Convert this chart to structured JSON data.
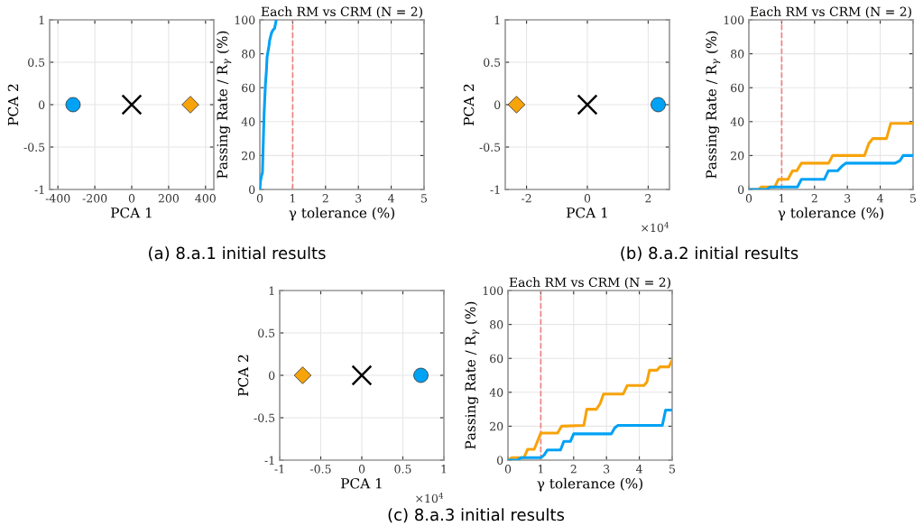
{
  "chart_data": [
    {
      "type": "scatter",
      "xlabel": "PCA 1",
      "ylabel": "PCA 2",
      "xlim": [
        -445,
        445
      ],
      "ylim": [
        -1,
        1
      ],
      "xticks": [
        -400,
        -200,
        0,
        200,
        400
      ],
      "yticks": [
        -1,
        -0.5,
        0,
        0.5,
        1
      ],
      "grid": true,
      "series": [
        {
          "color": "#00a2f5",
          "marker": "circle",
          "x": [
            -318
          ],
          "values": [
            0
          ]
        },
        {
          "color": "#000000",
          "marker": "cross",
          "x": [
            0
          ],
          "values": [
            0
          ]
        },
        {
          "color": "#f7a30a",
          "marker": "diamond",
          "x": [
            318
          ],
          "values": [
            0
          ]
        }
      ]
    },
    {
      "type": "line",
      "title": "Each RM vs CRM (N = 2)",
      "xlabel": "γ tolerance (%)",
      "ylabel": "Passing Rate / R$_{γ}$ (%)",
      "xlim": [
        0,
        5
      ],
      "ylim": [
        0,
        100
      ],
      "xticks": [
        0,
        1,
        2,
        3,
        4,
        5
      ],
      "yticks": [
        0,
        20,
        40,
        60,
        80,
        100
      ],
      "grid": true,
      "ref_lines": [
        {
          "axis": "x",
          "value": 1,
          "color": "#f08080",
          "line_style": "dashed"
        }
      ],
      "annotations": [
        "(a) 8.a.1 initial results"
      ],
      "series": [
        {
          "color": "#00a2f5",
          "x": [
            0,
            0.02,
            0.05,
            0.08,
            0.1,
            0.13,
            0.17,
            0.2,
            0.22,
            0.28,
            0.3,
            0.35,
            0.4,
            0.45,
            0.48,
            0.5
          ],
          "values": [
            0,
            5,
            8,
            10,
            25,
            45,
            62,
            70,
            78,
            85,
            88,
            92,
            94,
            95,
            98,
            100
          ]
        }
      ]
    },
    {
      "type": "scatter",
      "xlabel": "PCA 1",
      "ylabel": "PCA 2",
      "xlim": [
        -2.7,
        2.7
      ],
      "ylim": [
        -1,
        1
      ],
      "xticks": [
        -2,
        0,
        2
      ],
      "yticks": [
        -1,
        -0.5,
        0,
        0.5,
        1
      ],
      "grid": true,
      "annotations": [
        "×10$^{4}$"
      ],
      "series": [
        {
          "color": "#f7a30a",
          "marker": "diamond",
          "x": [
            -2.33
          ],
          "values": [
            0
          ]
        },
        {
          "color": "#000000",
          "marker": "cross",
          "x": [
            0
          ],
          "values": [
            0
          ]
        },
        {
          "color": "#00a2f5",
          "marker": "circle",
          "x": [
            2.33
          ],
          "values": [
            0
          ]
        }
      ]
    },
    {
      "type": "line",
      "title": "Each RM vs CRM (N = 2)",
      "xlabel": "γ tolerance (%)",
      "ylabel": "Passing Rate / R$_{γ}$ (%)",
      "xlim": [
        0,
        5
      ],
      "ylim": [
        0,
        100
      ],
      "xticks": [
        0,
        1,
        2,
        3,
        4,
        5
      ],
      "yticks": [
        0,
        20,
        40,
        60,
        80,
        100
      ],
      "grid": true,
      "ref_lines": [
        {
          "axis": "x",
          "value": 1,
          "color": "#f08080",
          "line_style": "dashed"
        }
      ],
      "annotations": [
        "(b) 8.a.2 initial results"
      ],
      "series": [
        {
          "color": "#f7a30a",
          "x": [
            0,
            0.3,
            0.38,
            0.79,
            0.9,
            1.19,
            1.33,
            1.46,
            1.6,
            2.43,
            2.55,
            3.52,
            3.65,
            3.77,
            4.19,
            4.32,
            5
          ],
          "values": [
            0,
            0,
            1.5,
            1.5,
            6,
            6,
            11,
            11,
            15.5,
            15.5,
            20,
            20,
            27,
            30,
            30,
            39,
            39
          ]
        },
        {
          "color": "#00a2f5",
          "x": [
            0,
            0.55,
            0.65,
            1.48,
            1.6,
            2.3,
            2.42,
            2.7,
            2.85,
            2.95,
            4.45,
            4.6,
            4.7,
            5
          ],
          "values": [
            0,
            0,
            1.5,
            1.5,
            6,
            6,
            11,
            11,
            14,
            15.5,
            15.5,
            17,
            20,
            20
          ]
        }
      ]
    },
    {
      "type": "scatter",
      "xlabel": "PCA 1",
      "ylabel": "PCA 2",
      "xlim": [
        -1,
        1
      ],
      "ylim": [
        -1,
        1
      ],
      "xticks": [
        -1,
        -0.5,
        0,
        0.5,
        1
      ],
      "yticks": [
        -1,
        -0.5,
        0,
        0.5,
        1
      ],
      "grid": true,
      "annotations": [
        "×10$^{4}$"
      ],
      "series": [
        {
          "color": "#f7a30a",
          "marker": "diamond",
          "x": [
            -0.72
          ],
          "values": [
            0
          ]
        },
        {
          "color": "#000000",
          "marker": "cross",
          "x": [
            0
          ],
          "values": [
            0
          ]
        },
        {
          "color": "#00a2f5",
          "marker": "circle",
          "x": [
            0.72
          ],
          "values": [
            0
          ]
        }
      ]
    },
    {
      "type": "line",
      "title": "Each RM vs CRM (N = 2)",
      "xlabel": "γ tolerance (%)",
      "ylabel": "Passing Rate / R$_{γ}$ (%)",
      "xlim": [
        0,
        5
      ],
      "ylim": [
        0,
        100
      ],
      "xticks": [
        0,
        1,
        2,
        3,
        4,
        5
      ],
      "yticks": [
        0,
        20,
        40,
        60,
        80,
        100
      ],
      "grid": true,
      "ref_lines": [
        {
          "axis": "x",
          "value": 1,
          "color": "#f08080",
          "line_style": "dashed"
        }
      ],
      "annotations": [
        "(c) 8.a.3 initial results"
      ],
      "series": [
        {
          "color": "#f7a30a",
          "x": [
            0,
            0.13,
            0.49,
            0.6,
            0.8,
            1.0,
            1.51,
            1.63,
            2.31,
            2.4,
            2.69,
            2.8,
            2.91,
            3.51,
            3.63,
            4.14,
            4.23,
            4.31,
            4.54,
            4.63,
            4.9,
            5
          ],
          "values": [
            0,
            1.5,
            1.5,
            6.4,
            6.4,
            16,
            16,
            20,
            20.5,
            30,
            30,
            33,
            39,
            39,
            44,
            44,
            46,
            53,
            53,
            55,
            55,
            59
          ]
        },
        {
          "color": "#00a2f5",
          "x": [
            0,
            0.3,
            0.4,
            1.0,
            1.1,
            1.2,
            1.6,
            1.7,
            1.9,
            2.0,
            3.15,
            3.25,
            3.35,
            4.7,
            4.8,
            5
          ],
          "values": [
            0,
            0,
            1.5,
            1.5,
            3,
            6,
            6,
            11,
            11,
            15.5,
            15.5,
            19,
            20.5,
            20.5,
            29.5,
            29.5
          ]
        }
      ]
    }
  ]
}
